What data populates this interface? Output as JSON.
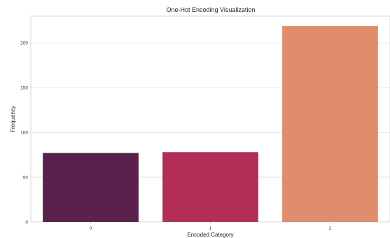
{
  "chart_data": {
    "type": "bar",
    "title": "One-Hot Encoding Visualization",
    "xlabel": "Encoded Category",
    "ylabel": "Frequency",
    "categories": [
      "0",
      "1",
      "2"
    ],
    "values": [
      77,
      78,
      219
    ],
    "colors": [
      "#5b214c",
      "#b32e57",
      "#e08d6d"
    ],
    "ylim": [
      0,
      230
    ],
    "yticks": [
      0,
      50,
      100,
      150,
      200
    ],
    "grid": true,
    "legend": false
  }
}
